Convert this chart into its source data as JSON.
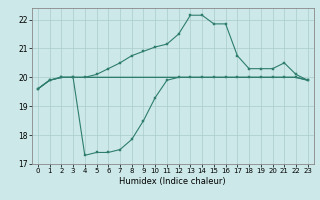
{
  "title": "",
  "xlabel": "Humidex (Indice chaleur)",
  "ylabel": "",
  "bg_color": "#cce8e8",
  "grid_color": "#aacccc",
  "line_color": "#2e7d6e",
  "xlim": [
    -0.5,
    23.5
  ],
  "ylim": [
    17,
    22.4
  ],
  "xticks": [
    0,
    1,
    2,
    3,
    4,
    5,
    6,
    7,
    8,
    9,
    10,
    11,
    12,
    13,
    14,
    15,
    16,
    17,
    18,
    19,
    20,
    21,
    22,
    23
  ],
  "yticks": [
    17,
    18,
    19,
    20,
    21,
    22
  ],
  "x": [
    0,
    1,
    2,
    3,
    4,
    5,
    6,
    7,
    8,
    9,
    10,
    11,
    12,
    13,
    14,
    15,
    16,
    17,
    18,
    19,
    20,
    21,
    22,
    23
  ],
  "y_max": [
    19.6,
    19.9,
    20.0,
    20.0,
    20.0,
    20.1,
    20.3,
    20.5,
    20.75,
    20.9,
    21.05,
    21.15,
    21.5,
    22.15,
    22.15,
    21.85,
    21.85,
    20.75,
    20.3,
    20.3,
    20.3,
    20.5,
    20.1,
    19.9
  ],
  "y_min": [
    19.6,
    19.9,
    20.0,
    20.0,
    17.3,
    17.4,
    17.4,
    17.5,
    17.85,
    18.5,
    19.3,
    19.9,
    20.0,
    20.0,
    20.0,
    20.0,
    20.0,
    20.0,
    20.0,
    20.0,
    20.0,
    20.0,
    20.0,
    19.9
  ],
  "y_mean": [
    19.6,
    19.9,
    20.0,
    20.0,
    20.0,
    20.0,
    20.0,
    20.0,
    20.0,
    20.0,
    20.0,
    20.0,
    20.0,
    20.0,
    20.0,
    20.0,
    20.0,
    20.0,
    20.0,
    20.0,
    20.0,
    20.0,
    20.0,
    19.9
  ],
  "xlabel_fontsize": 6.0,
  "tick_fontsize": 5.0,
  "linewidth": 0.8,
  "markersize": 2.0
}
